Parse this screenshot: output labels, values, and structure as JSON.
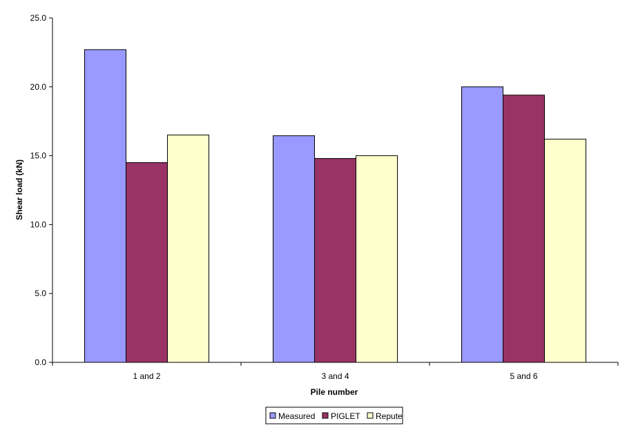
{
  "chart_data": {
    "type": "bar",
    "xlabel": "Pile number",
    "ylabel": "Shear load (kN)",
    "categories": [
      "1 and 2",
      "3 and 4",
      "5 and 6"
    ],
    "series": [
      {
        "name": "Measured",
        "values": [
          22.7,
          16.45,
          20.0
        ],
        "color": "#9999ff"
      },
      {
        "name": "PIGLET",
        "values": [
          14.5,
          14.8,
          19.4
        ],
        "color": "#993366"
      },
      {
        "name": "Repute",
        "values": [
          16.5,
          15.0,
          16.2
        ],
        "color": "#ffffcc"
      }
    ],
    "ylim": [
      0,
      25
    ],
    "yticks": [
      "0.0",
      "5.0",
      "10.0",
      "15.0",
      "20.0",
      "25.0"
    ],
    "grid": false,
    "legend_position": "bottom"
  }
}
